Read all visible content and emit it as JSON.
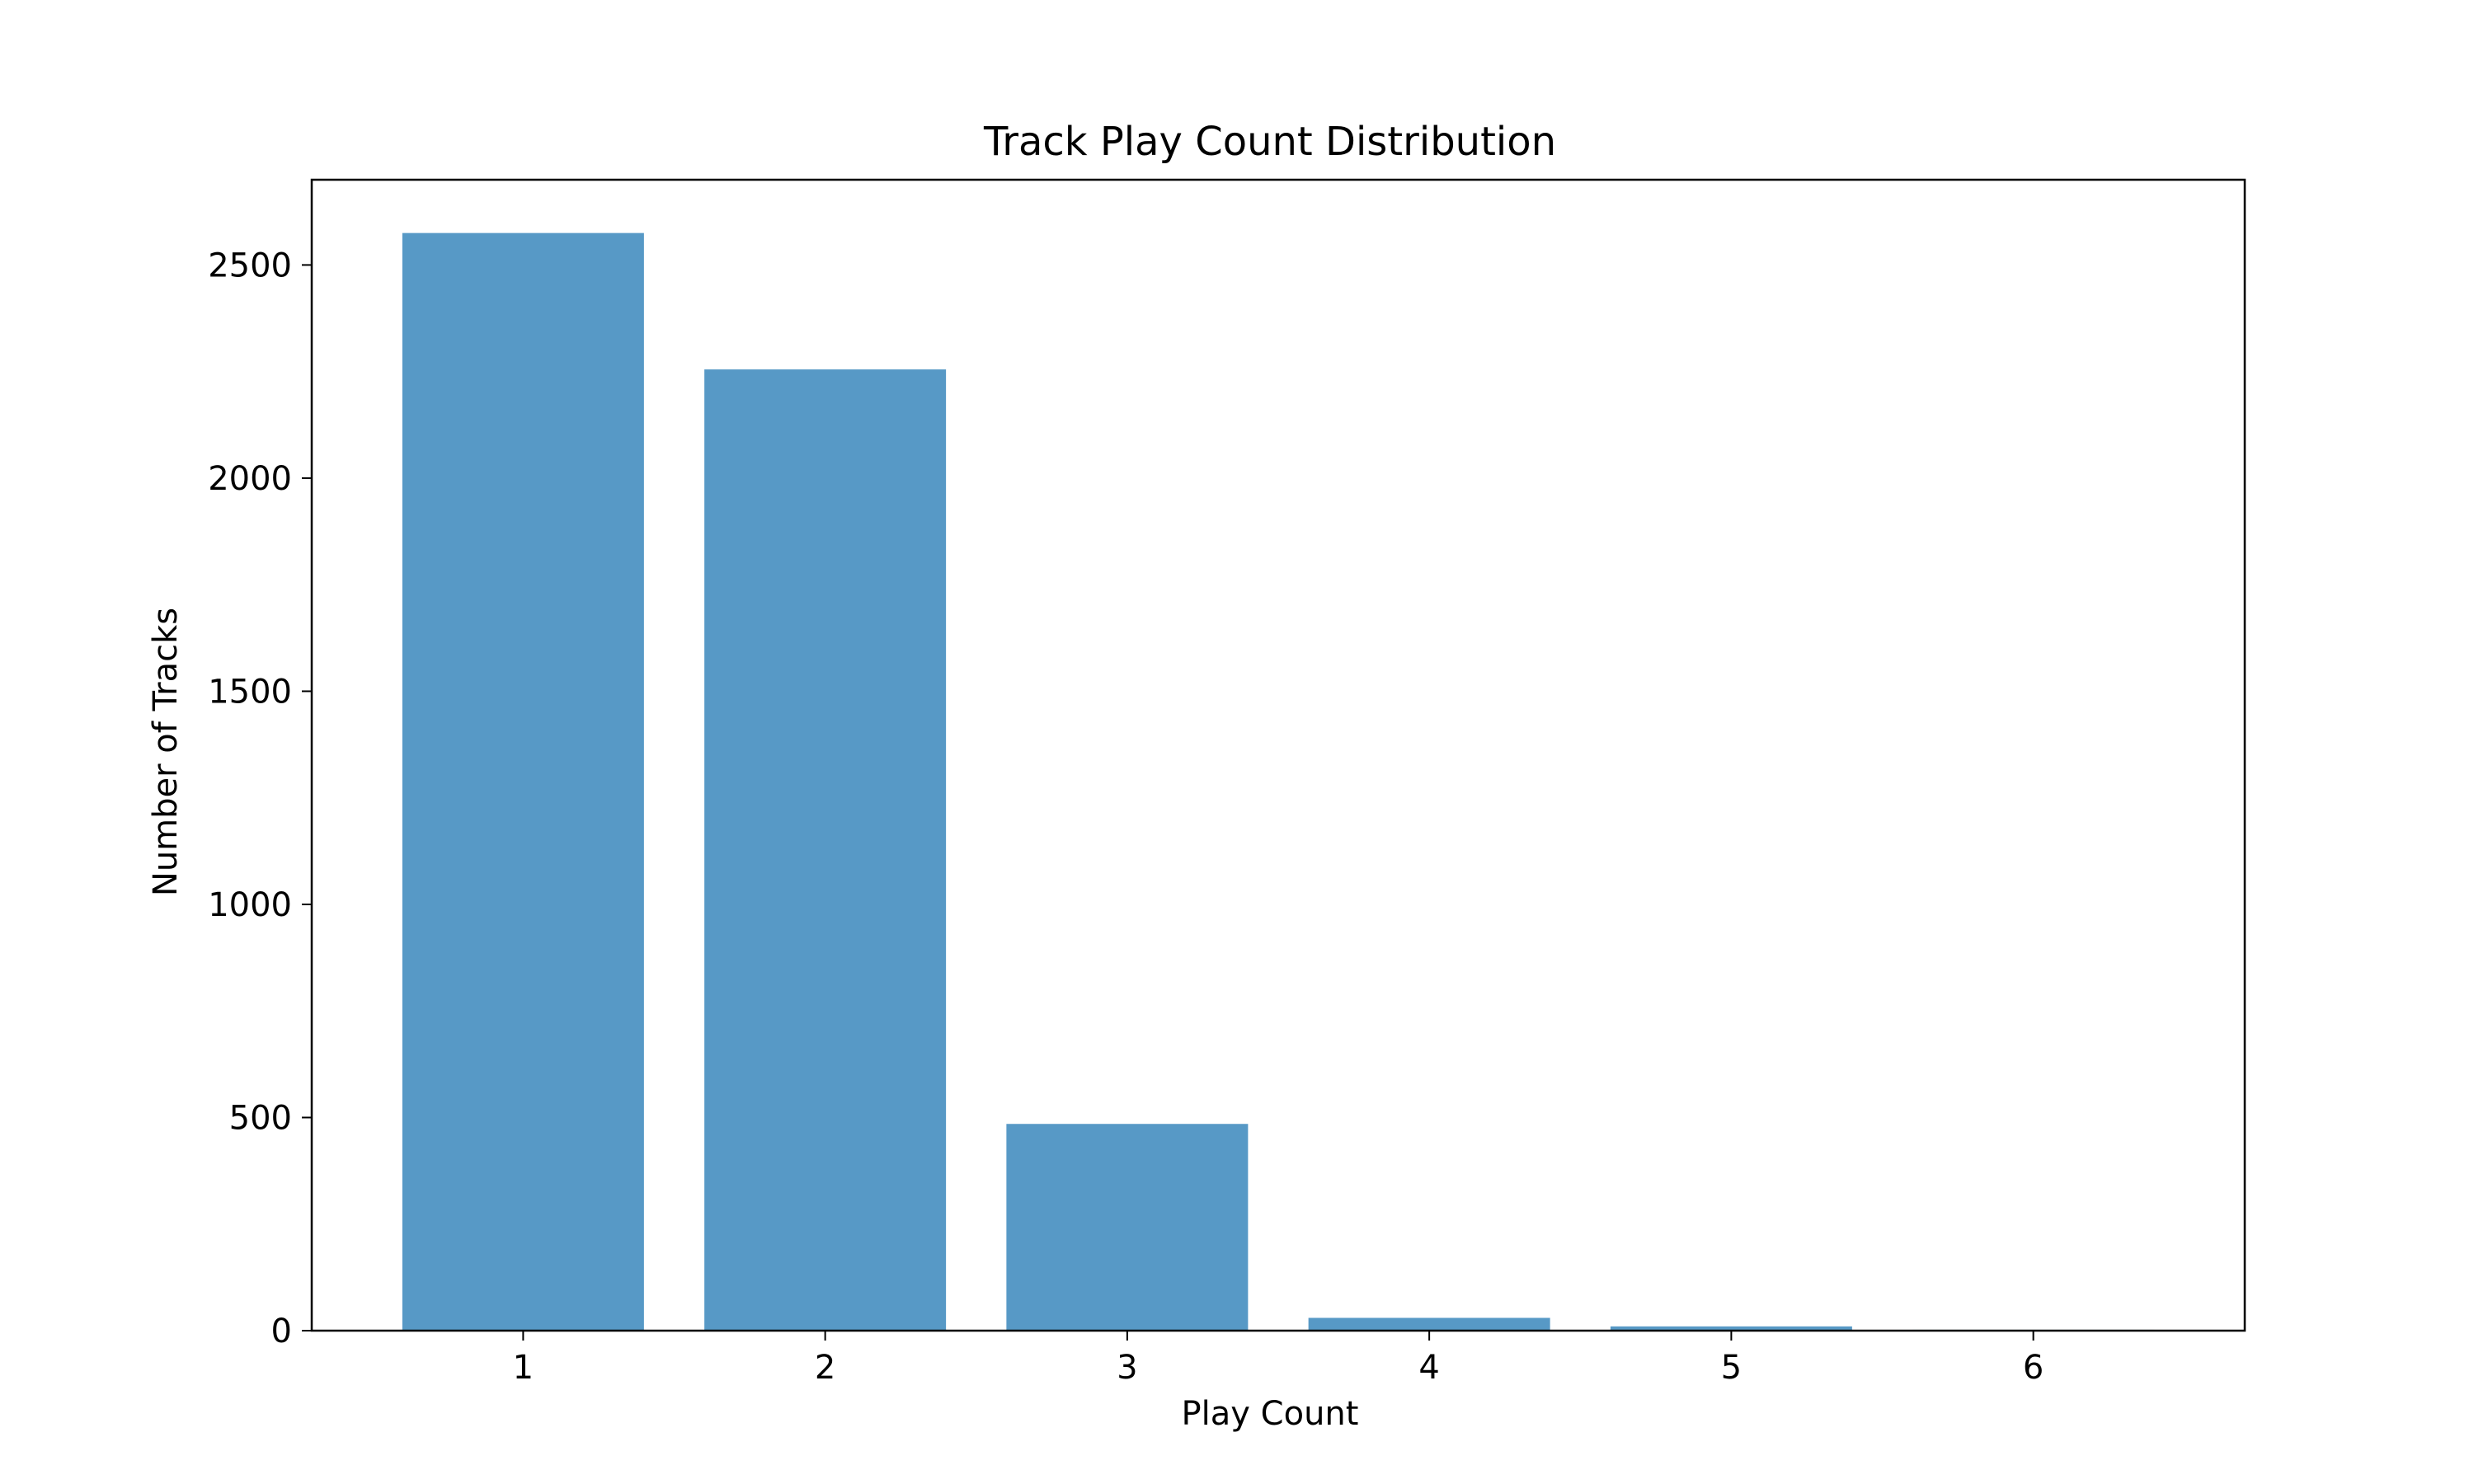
{
  "chart_data": {
    "type": "bar",
    "title": "Track Play Count Distribution",
    "xlabel": "Play Count",
    "ylabel": "Number of Tracks",
    "categories": [
      "1",
      "2",
      "3",
      "4",
      "5",
      "6"
    ],
    "x": [
      1,
      2,
      3,
      4,
      5,
      6
    ],
    "values": [
      2575,
      2255,
      485,
      30,
      10,
      2
    ],
    "xlim": [
      0.3,
      6.7
    ],
    "ylim": [
      0,
      2700
    ],
    "yticks": [
      0,
      500,
      1000,
      1500,
      2000,
      2500
    ],
    "bar_width": 0.8,
    "grid": false,
    "colors": {
      "bar": "#5799C6",
      "axes": "#000000"
    }
  }
}
